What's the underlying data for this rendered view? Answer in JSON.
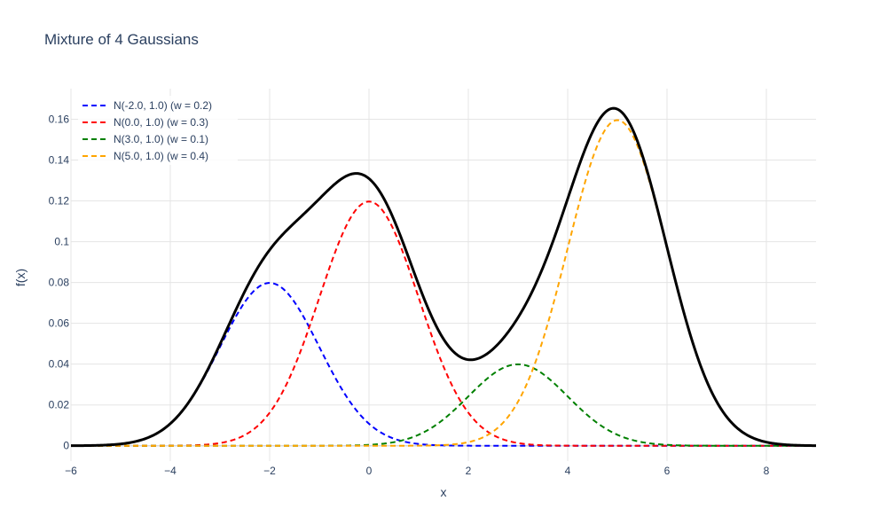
{
  "chart_data": {
    "type": "line",
    "title": "Mixture of 4 Gaussians",
    "xlabel": "x",
    "ylabel": "f(x)",
    "xlim": [
      -6,
      9
    ],
    "ylim": [
      -0.0075,
      0.175
    ],
    "x_ticks": [
      -6,
      -4,
      -2,
      0,
      2,
      4,
      6,
      8
    ],
    "x_tick_labels": [
      "−6",
      "−4",
      "−2",
      "0",
      "2",
      "4",
      "6",
      "8"
    ],
    "y_ticks": [
      0,
      0.02,
      0.04,
      0.06,
      0.08,
      0.1,
      0.12,
      0.14,
      0.16
    ],
    "y_tick_labels": [
      "0",
      "0.02",
      "0.04",
      "0.06",
      "0.08",
      "0.1",
      "0.12",
      "0.14",
      "0.16"
    ],
    "grid": true,
    "legend_position": "top-left",
    "components": [
      {
        "name": "N(-2.0, 1.0) (w = 0.2)",
        "mean": -2.0,
        "sd": 1.0,
        "weight": 0.2,
        "color": "#0000ff",
        "dash": "dashed"
      },
      {
        "name": "N(0.0, 1.0) (w = 0.3)",
        "mean": 0.0,
        "sd": 1.0,
        "weight": 0.3,
        "color": "#ff0000",
        "dash": "dashed"
      },
      {
        "name": "N(3.0, 1.0) (w = 0.1)",
        "mean": 3.0,
        "sd": 1.0,
        "weight": 0.1,
        "color": "#008000",
        "dash": "dashed"
      },
      {
        "name": "N(5.0, 1.0) (w = 0.4)",
        "mean": 5.0,
        "sd": 1.0,
        "weight": 0.4,
        "color": "#ffa500",
        "dash": "dashed"
      }
    ],
    "mixture": {
      "color": "#000000",
      "dash": "solid"
    }
  }
}
